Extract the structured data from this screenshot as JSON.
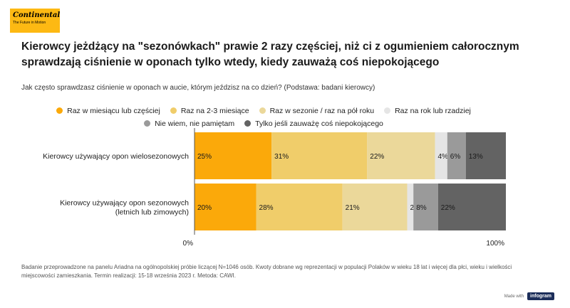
{
  "logo": {
    "brand": "Continental",
    "tagline": "The Future in Motion",
    "color": "#fdb913"
  },
  "title": "Kierowcy jeżdżący na \"sezonówkach\" prawie 2 razy częściej, niż ci z ogumieniem całorocznym sprawdzają ciśnienie w oponach tylko wtedy, kiedy zauważą coś niepokojącego",
  "subtitle": "Jak często sprawdzasz ciśnienie w oponach w aucie, którym jeździsz na co dzień? (Podstawa: badani kierowcy)",
  "footnote": "Badanie przeprowadzone na panelu Ariadna na ogólnopolskiej próbie liczącej N=1046 osób. Kwoty dobrane wg reprezentacji w populacji Polaków w wieku 18 lat i więcej dla płci, wieku i wielkości miejscowości zamieszkania. Termin realizacji:  15-18 września 2023 r. Metoda: CAWI.",
  "made_with": {
    "label": "Made with",
    "brand": "infogram"
  },
  "chart_data": {
    "type": "bar",
    "orientation": "horizontal",
    "stacked": true,
    "categories": [
      [
        "Kierowcy używający opon wielosezonowych"
      ],
      [
        "Kierowcy używający opon sezonowych",
        "(letnich lub zimowych)"
      ]
    ],
    "series": [
      {
        "name": "Raz w miesiącu lub częściej",
        "color": "#fba90a",
        "values": [
          25,
          20
        ]
      },
      {
        "name": "Raz na 2-3 miesiące",
        "color": "#f0cd6a",
        "values": [
          31,
          28
        ]
      },
      {
        "name": "Raz w sezonie / raz na pół roku",
        "color": "#ebd89a",
        "values": [
          22,
          21
        ]
      },
      {
        "name": "Raz na rok lub rzadziej",
        "color": "#e5e5e5",
        "values": [
          4,
          2
        ]
      },
      {
        "name": "Nie wiem, nie pamiętam",
        "color": "#9a9a9a",
        "values": [
          6,
          8
        ]
      },
      {
        "name": "Tylko jeśli zauważę coś niepokojącego",
        "color": "#636363",
        "values": [
          13,
          22
        ]
      }
    ],
    "xlim": [
      0,
      100
    ],
    "x_tick_labels": [
      "0%",
      "100%"
    ],
    "value_suffix": "%",
    "legend_position": "top"
  }
}
